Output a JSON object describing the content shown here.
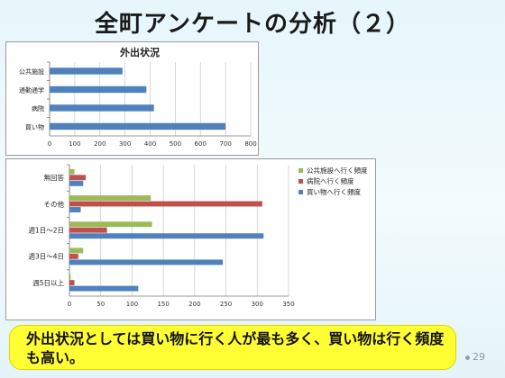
{
  "slide": {
    "title": "全町アンケートの分析（２）",
    "summary": "外出状況としては買い物に行く人が最も多く、買い物は行く頻度も高い。",
    "page_number": "29"
  },
  "chart_data": [
    {
      "type": "bar",
      "orientation": "horizontal",
      "title": "外出状況",
      "categories": [
        "公共施設",
        "通勤通学",
        "病院",
        "買い物"
      ],
      "series": [
        {
          "values": [
            290,
            385,
            415,
            700
          ],
          "color": "#4f81bd"
        }
      ],
      "xlim": [
        0,
        800
      ],
      "xticks": [
        0,
        100,
        200,
        300,
        400,
        500,
        600,
        700,
        800
      ],
      "grid": true,
      "legend": "none"
    },
    {
      "type": "bar",
      "orientation": "horizontal",
      "title": "",
      "categories": [
        "無回答",
        "その他",
        "週1日～2日",
        "週3日～4日",
        "週5日以上"
      ],
      "series": [
        {
          "name": "公共施設へ行く頻度",
          "color": "#9bbb59",
          "values": [
            8,
            130,
            132,
            22,
            2
          ]
        },
        {
          "name": "病院へ行く頻度",
          "color": "#c0504d",
          "values": [
            26,
            308,
            60,
            14,
            8
          ]
        },
        {
          "name": "買い物へ行く頻度",
          "color": "#4f81bd",
          "values": [
            22,
            18,
            310,
            245,
            110
          ]
        }
      ],
      "xlim": [
        0,
        350
      ],
      "xticks": [
        0,
        50,
        100,
        150,
        200,
        250,
        300,
        350
      ],
      "grid": true,
      "legend": "right"
    }
  ]
}
